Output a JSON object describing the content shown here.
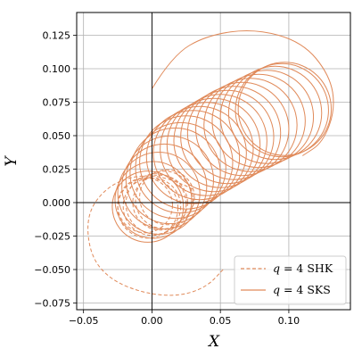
{
  "chart_data": {
    "type": "line",
    "xlabel": "X",
    "ylabel": "Y",
    "xlim": [
      -0.055,
      0.145
    ],
    "ylim": [
      -0.08,
      0.142
    ],
    "xticks": [
      -0.05,
      0.0,
      0.05,
      0.1
    ],
    "xtick_labels": [
      "−0.05",
      "0.00",
      "0.05",
      "0.10"
    ],
    "yticks": [
      -0.075,
      -0.05,
      -0.025,
      0.0,
      0.025,
      0.05,
      0.075,
      0.1,
      0.125
    ],
    "ytick_labels": [
      "−0.075",
      "−0.050",
      "−0.025",
      "0.000",
      "0.025",
      "0.050",
      "0.075",
      "0.100",
      "0.125"
    ],
    "grid": true,
    "legend_position": "bottom-right",
    "color": "#e08a5a",
    "series": [
      {
        "name": "q = 4 SHK",
        "legend_var": "q",
        "legend_rest": " = 4 SHK",
        "style": "dashed",
        "loops": [
          {
            "cx": -0.005,
            "cy": -0.002,
            "r": 0.02
          },
          {
            "cx": -0.003,
            "cy": -0.004,
            "r": 0.022
          },
          {
            "cx": 0.0,
            "cy": -0.003,
            "r": 0.021
          },
          {
            "cx": 0.003,
            "cy": -0.001,
            "r": 0.022
          },
          {
            "cx": 0.006,
            "cy": 0.0,
            "r": 0.02
          },
          {
            "cx": 0.009,
            "cy": 0.002,
            "r": 0.021
          },
          {
            "cx": 0.011,
            "cy": 0.004,
            "r": 0.02
          }
        ],
        "outer_arc": [
          [
            0.03,
            0.01
          ],
          [
            0.01,
            0.02
          ],
          [
            -0.015,
            0.02
          ],
          [
            -0.035,
            0.01
          ],
          [
            -0.048,
            -0.01
          ],
          [
            -0.045,
            -0.04
          ],
          [
            -0.03,
            -0.058
          ],
          [
            -0.005,
            -0.068
          ],
          [
            0.02,
            -0.07
          ],
          [
            0.04,
            -0.063
          ],
          [
            0.052,
            -0.05
          ]
        ]
      },
      {
        "name": "q = 4 SKS",
        "legend_var": "q",
        "legend_rest": " = 4 SKS",
        "style": "solid",
        "loops": [
          {
            "cx": -0.003,
            "cy": -0.003,
            "r": 0.026
          },
          {
            "cx": 0.001,
            "cy": 0.002,
            "r": 0.028
          },
          {
            "cx": 0.005,
            "cy": 0.007,
            "r": 0.03
          },
          {
            "cx": 0.009,
            "cy": 0.012,
            "r": 0.031
          },
          {
            "cx": 0.013,
            "cy": 0.017,
            "r": 0.032
          },
          {
            "cx": 0.017,
            "cy": 0.022,
            "r": 0.033
          },
          {
            "cx": 0.021,
            "cy": 0.026,
            "r": 0.033
          },
          {
            "cx": 0.025,
            "cy": 0.03,
            "r": 0.034
          },
          {
            "cx": 0.03,
            "cy": 0.034,
            "r": 0.034
          },
          {
            "cx": 0.035,
            "cy": 0.037,
            "r": 0.034
          },
          {
            "cx": 0.04,
            "cy": 0.04,
            "r": 0.034
          },
          {
            "cx": 0.045,
            "cy": 0.043,
            "r": 0.034
          },
          {
            "cx": 0.05,
            "cy": 0.046,
            "r": 0.034
          },
          {
            "cx": 0.055,
            "cy": 0.049,
            "r": 0.034
          },
          {
            "cx": 0.06,
            "cy": 0.052,
            "r": 0.034
          },
          {
            "cx": 0.066,
            "cy": 0.055,
            "r": 0.034
          },
          {
            "cx": 0.072,
            "cy": 0.058,
            "r": 0.034
          },
          {
            "cx": 0.078,
            "cy": 0.061,
            "r": 0.034
          },
          {
            "cx": 0.084,
            "cy": 0.064,
            "r": 0.034
          },
          {
            "cx": 0.09,
            "cy": 0.067,
            "r": 0.034
          },
          {
            "cx": 0.095,
            "cy": 0.069,
            "r": 0.034
          },
          {
            "cx": 0.097,
            "cy": 0.07,
            "r": 0.034
          }
        ],
        "outer_arc": [
          [
            0.0,
            0.085
          ],
          [
            0.015,
            0.11
          ],
          [
            0.04,
            0.125
          ],
          [
            0.075,
            0.13
          ],
          [
            0.11,
            0.12
          ],
          [
            0.13,
            0.095
          ],
          [
            0.134,
            0.07
          ],
          [
            0.125,
            0.045
          ],
          [
            0.11,
            0.035
          ]
        ]
      }
    ]
  }
}
